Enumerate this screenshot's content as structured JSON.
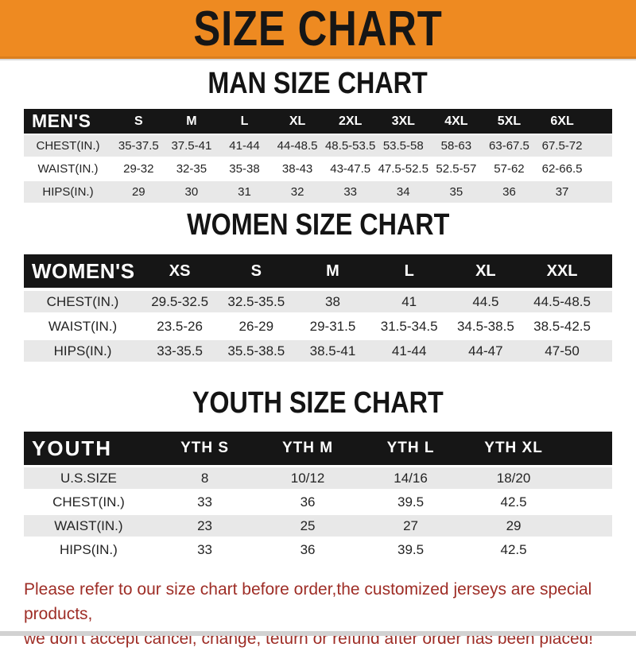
{
  "banner": {
    "title": "SIZE CHART",
    "bg_color": "#EE8A21",
    "text_color": "#161616"
  },
  "colors": {
    "header_bar": "#161616",
    "row_stripe_gray": "#E8E8E8",
    "footer_red": "#9E2D26"
  },
  "sections": {
    "men": {
      "heading": "MAN SIZE CHART",
      "label": "MEN'S",
      "columns": [
        "S",
        "M",
        "L",
        "XL",
        "2XL",
        "3XL",
        "4XL",
        "5XL",
        "6XL"
      ],
      "rows": [
        {
          "label": "CHEST(IN.)",
          "values": [
            "35-37.5",
            "37.5-41",
            "41-44",
            "44-48.5",
            "48.5-53.5",
            "53.5-58",
            "58-63",
            "63-67.5",
            "67.5-72"
          ]
        },
        {
          "label": "WAIST(IN.)",
          "values": [
            "29-32",
            "32-35",
            "35-38",
            "38-43",
            "43-47.5",
            "47.5-52.5",
            "52.5-57",
            "57-62",
            "62-66.5"
          ]
        },
        {
          "label": "HIPS(IN.)",
          "values": [
            "29",
            "30",
            "31",
            "32",
            "33",
            "34",
            "35",
            "36",
            "37"
          ]
        }
      ]
    },
    "women": {
      "heading": "WOMEN SIZE CHART",
      "label": "WOMEN'S",
      "columns": [
        "XS",
        "S",
        "M",
        "L",
        "XL",
        "XXL"
      ],
      "rows": [
        {
          "label": "CHEST(IN.)",
          "values": [
            "29.5-32.5",
            "32.5-35.5",
            "38",
            "41",
            "44.5",
            "44.5-48.5"
          ]
        },
        {
          "label": "WAIST(IN.)",
          "values": [
            "23.5-26",
            "26-29",
            "29-31.5",
            "31.5-34.5",
            "34.5-38.5",
            "38.5-42.5"
          ]
        },
        {
          "label": "HIPS(IN.)",
          "values": [
            "33-35.5",
            "35.5-38.5",
            "38.5-41",
            "41-44",
            "44-47",
            "47-50"
          ]
        }
      ]
    },
    "youth": {
      "heading": "YOUTH SIZE CHART",
      "label": "YOUTH",
      "columns": [
        "YTH S",
        "YTH M",
        "YTH L",
        "YTH XL"
      ],
      "rows": [
        {
          "label": "U.S.SIZE",
          "values": [
            "8",
            "10/12",
            "14/16",
            "18/20"
          ]
        },
        {
          "label": "CHEST(IN.)",
          "values": [
            "33",
            "36",
            "39.5",
            "42.5"
          ]
        },
        {
          "label": "WAIST(IN.)",
          "values": [
            "23",
            "25",
            "27",
            "29"
          ]
        },
        {
          "label": "HIPS(IN.)",
          "values": [
            "33",
            "36",
            "39.5",
            "42.5"
          ]
        }
      ]
    }
  },
  "footer": {
    "line1": "Please refer to our size chart before order,the customized jerseys are special products,",
    "line2": "we don't accept cancel, change, teturn or refund after order has been placed!"
  }
}
